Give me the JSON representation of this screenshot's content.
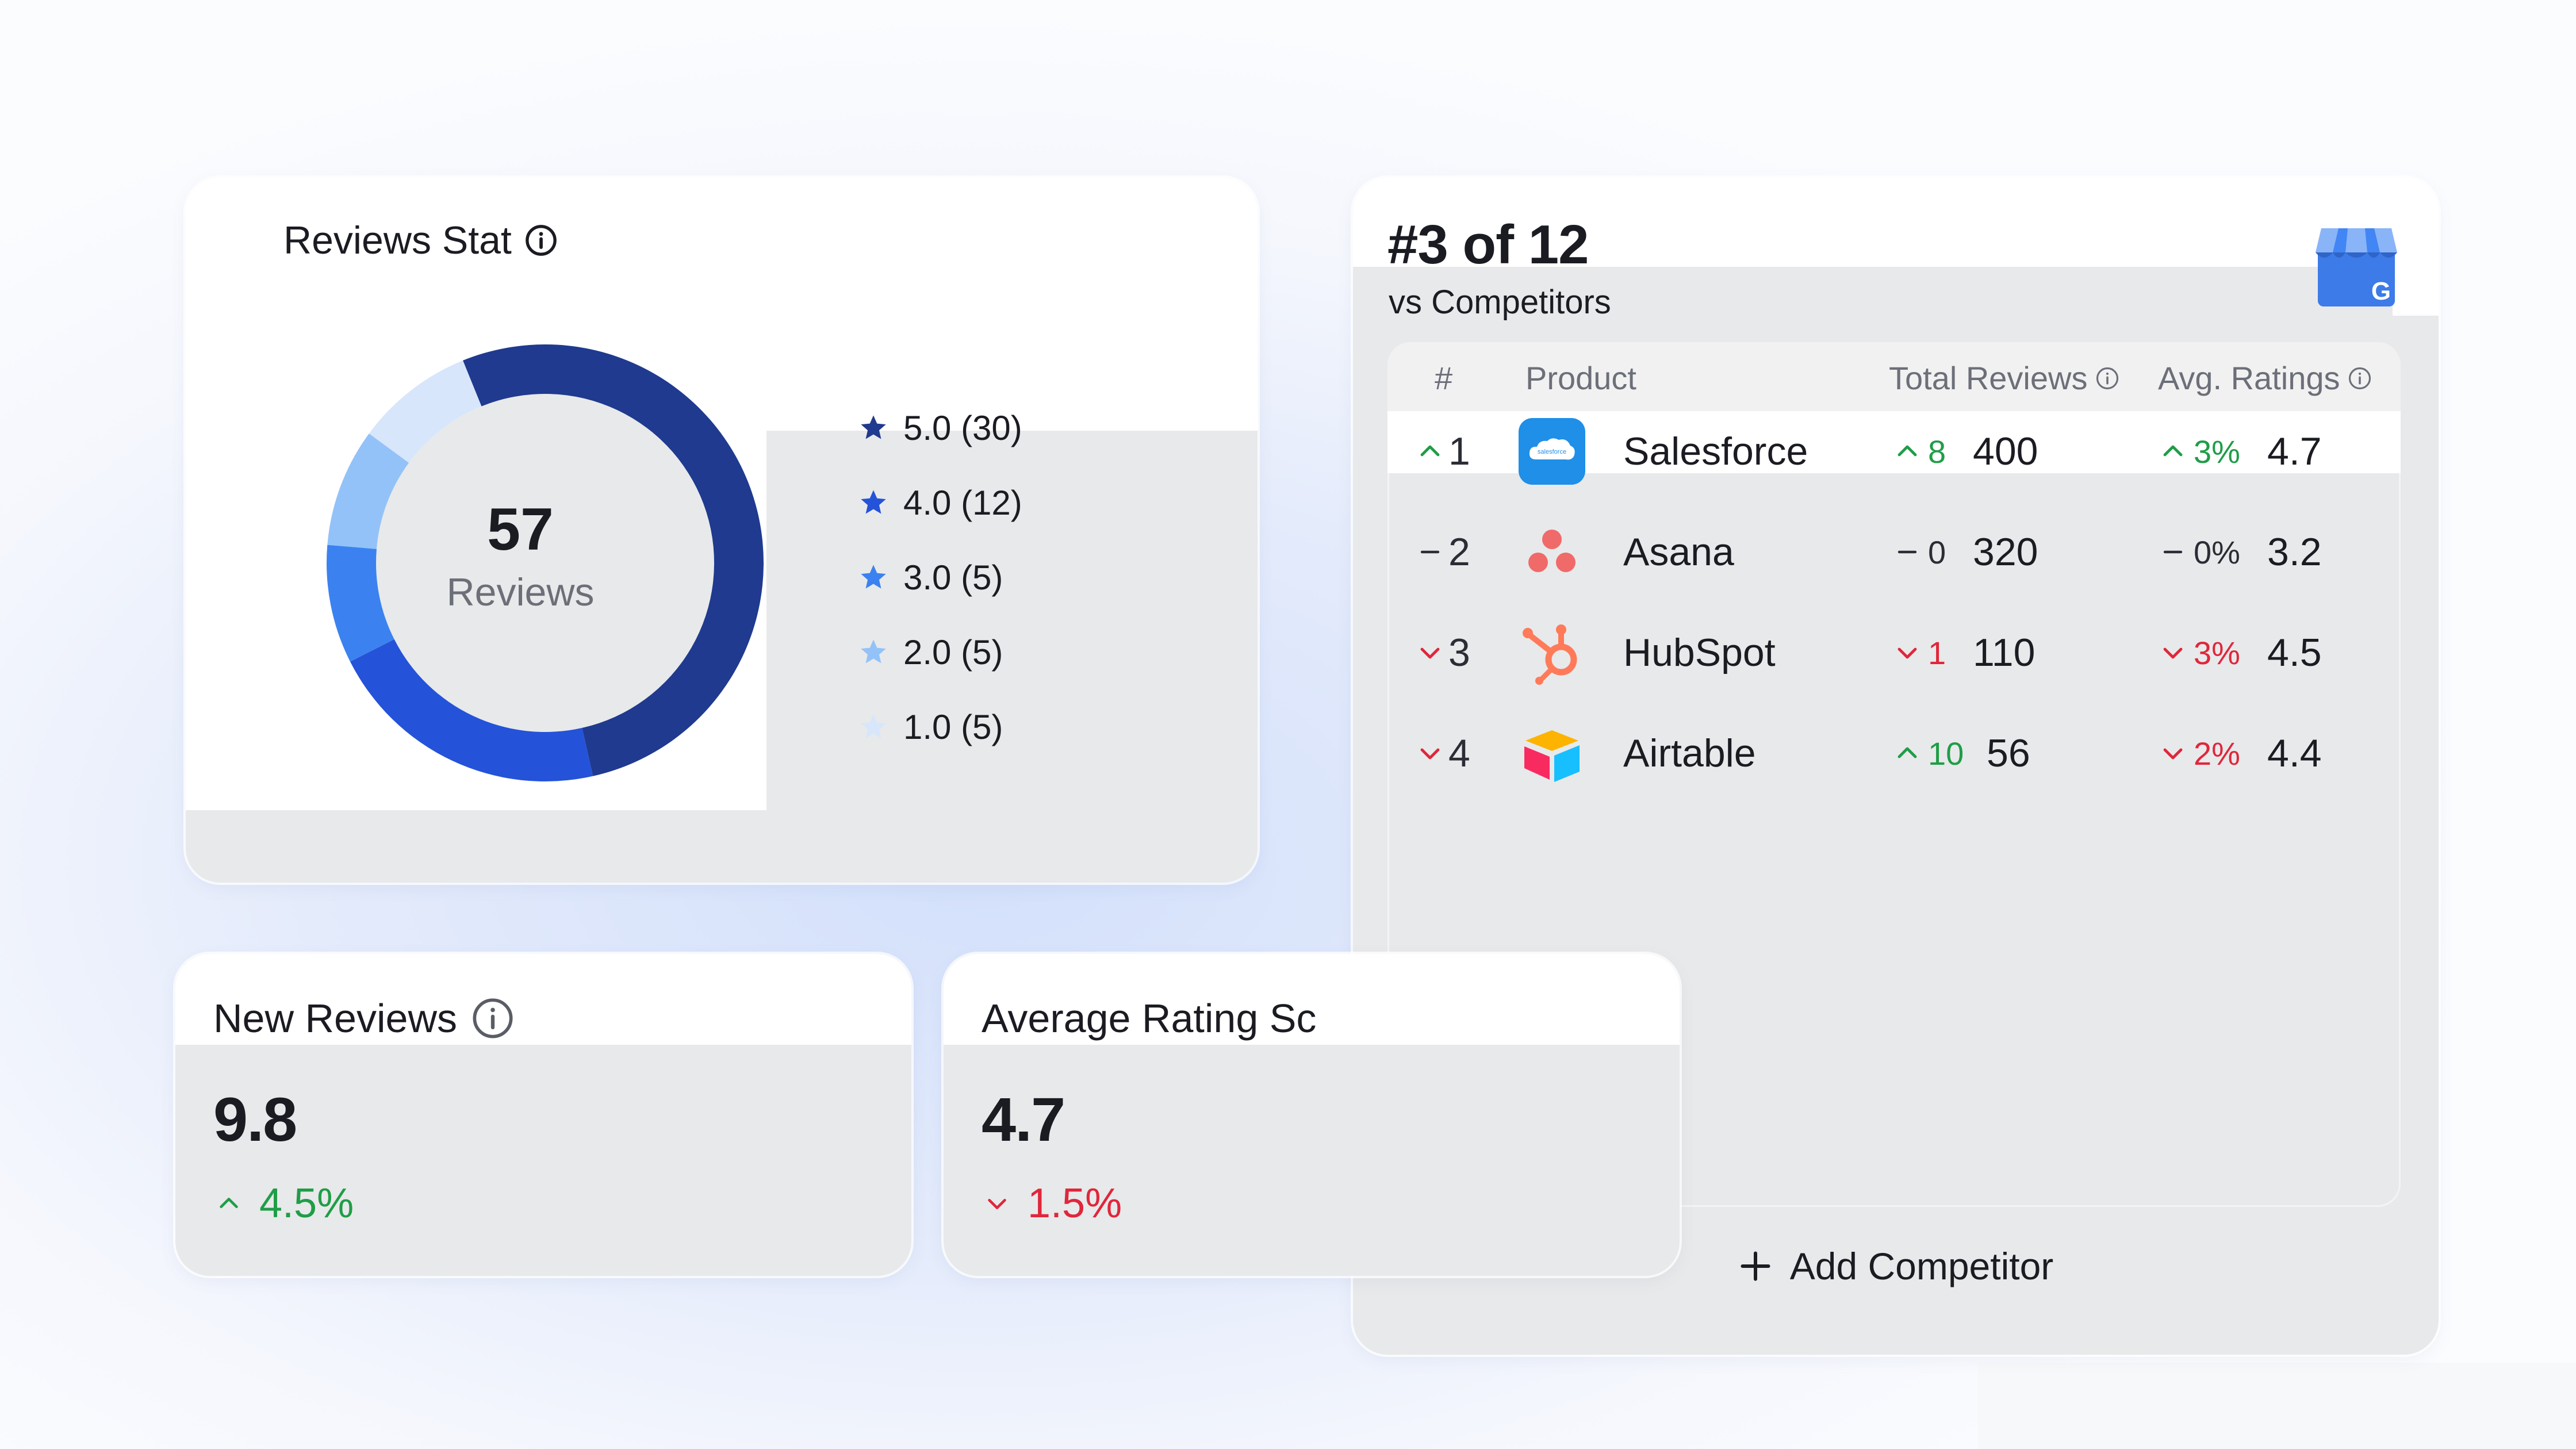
{
  "reviews_stat": {
    "title": "Reviews Stat",
    "total": "57",
    "total_label": "Reviews",
    "legend": [
      {
        "label": "5.0 (30)",
        "count": 30,
        "color": "#1f3a8f"
      },
      {
        "label": "4.0 (12)",
        "count": 12,
        "color": "#2453d9"
      },
      {
        "label": "3.0 (5)",
        "count": 5,
        "color": "#3b82f0"
      },
      {
        "label": "2.0 (5)",
        "count": 5,
        "color": "#93c2f8"
      },
      {
        "label": "1.0 (5)",
        "count": 5,
        "color": "#d7e6fb"
      }
    ]
  },
  "competitors": {
    "rank": "#3 of 12",
    "subtitle": "vs Competitors",
    "columns": {
      "index": "#",
      "product": "Product",
      "total_reviews": "Total Reviews",
      "avg_ratings": "Avg. Ratings"
    },
    "rows": [
      {
        "rank": "1",
        "rank_dir": "up",
        "product": "Salesforce",
        "icon": "salesforce-icon",
        "rev_chg": "8",
        "rev_dir": "up",
        "reviews": "400",
        "rat_chg": "3%",
        "rat_dir": "up",
        "rating": "4.7"
      },
      {
        "rank": "2",
        "rank_dir": "neutral",
        "product": "Asana",
        "icon": "asana-icon",
        "rev_chg": "0",
        "rev_dir": "neutral",
        "reviews": "320",
        "rat_chg": "0%",
        "rat_dir": "neutral",
        "rating": "3.2"
      },
      {
        "rank": "3",
        "rank_dir": "down",
        "product": "HubSpot",
        "icon": "hubspot-icon",
        "rev_chg": "1",
        "rev_dir": "down",
        "reviews": "110",
        "rat_chg": "3%",
        "rat_dir": "down",
        "rating": "4.5"
      },
      {
        "rank": "4",
        "rank_dir": "down",
        "product": "Airtable",
        "icon": "airtable-icon",
        "rev_chg": "10",
        "rev_dir": "up",
        "reviews": "56",
        "rat_chg": "2%",
        "rat_dir": "down",
        "rating": "4.4"
      }
    ],
    "add_label": "Add Competitor",
    "salesforce_logo_text": "salesforce"
  },
  "new_reviews": {
    "title": "New Reviews",
    "value": "9.8",
    "change": "4.5%",
    "direction": "up"
  },
  "avg_rating": {
    "title": "Average Rating Sc",
    "value": "4.7",
    "change": "1.5%",
    "direction": "down"
  },
  "colors": {
    "up": "#1f9d47",
    "down": "#e0263b",
    "card_bg": "#e8e9ea"
  }
}
